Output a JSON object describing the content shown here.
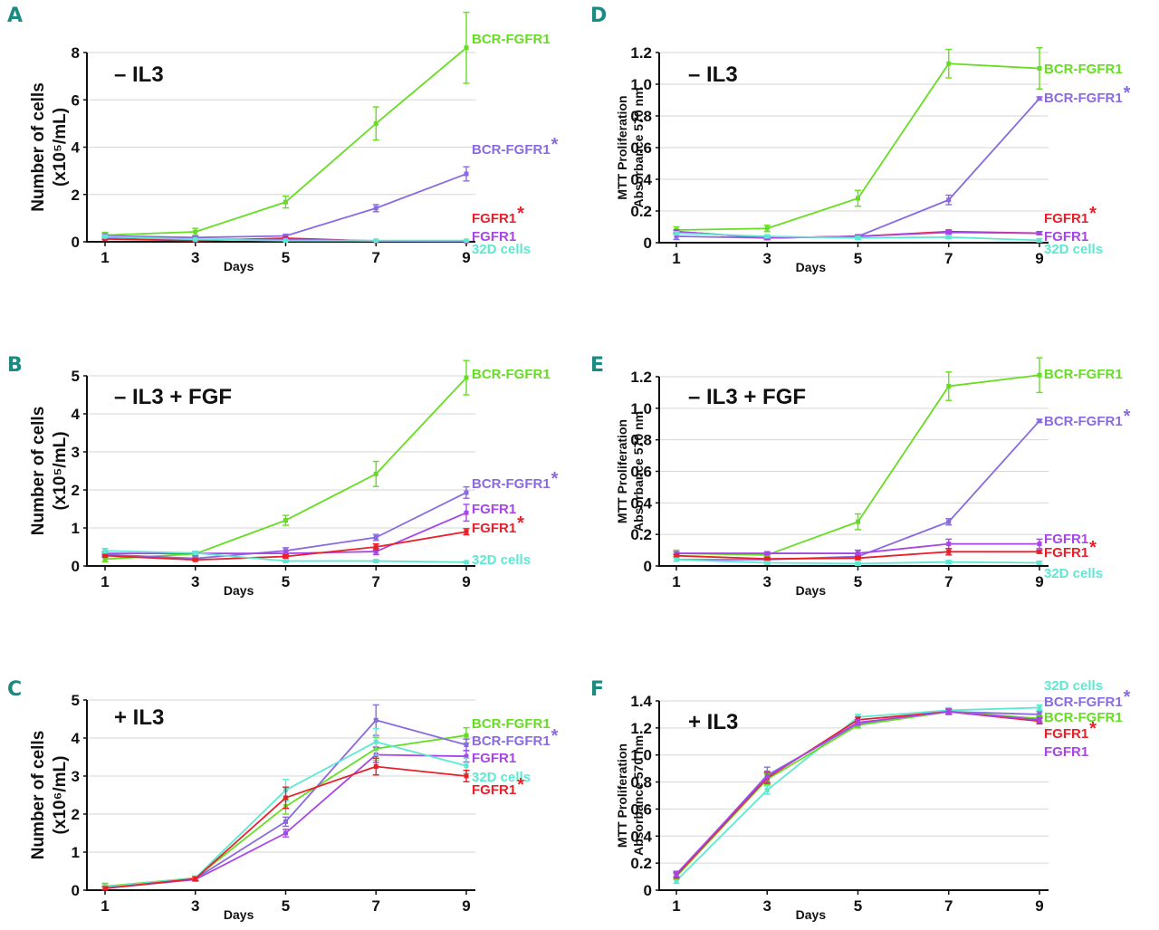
{
  "figure": {
    "colors": {
      "panel_letter": "#1a8a82",
      "BCR-FGFR1": "#66dd22",
      "BCR-FGFR1*": "#8a6ae0",
      "FGFR1*": "#e8202a",
      "FGFR1": "#a845e8",
      "32D cells": "#5ee8d2"
    }
  },
  "chart_data": [
    {
      "id": "A",
      "type": "line",
      "panel_letter": "A",
      "title": "– IL3",
      "xlabel": "Days",
      "ylabel_line1": "Number of cells",
      "ylabel_line2": "(x10⁵/mL)",
      "x": [
        1,
        3,
        5,
        7,
        9
      ],
      "xticks": [
        "1",
        "3",
        "5",
        "7",
        "9"
      ],
      "ylim": [
        0,
        8
      ],
      "yticks": [
        "0",
        "2",
        "4",
        "6",
        "8"
      ],
      "ytick_values": [
        0,
        2,
        4,
        6,
        8
      ],
      "grid": true,
      "series": [
        {
          "name": "BCR-FGFR1",
          "star": false,
          "color_key": "BCR-FGFR1",
          "values": [
            0.28,
            0.42,
            1.68,
            5.0,
            8.2
          ],
          "errors": [
            0.12,
            0.15,
            0.25,
            0.7,
            1.5
          ]
        },
        {
          "name": "BCR-FGFR1",
          "star": true,
          "color_key": "BCR-FGFR1*",
          "values": [
            0.25,
            0.18,
            0.25,
            1.42,
            2.87
          ],
          "errors": [
            0.08,
            0.05,
            0.06,
            0.15,
            0.3
          ]
        },
        {
          "name": "FGFR1",
          "star": true,
          "color_key": "FGFR1*",
          "values": [
            0.12,
            0.05,
            0.15,
            0.03,
            0.02
          ],
          "errors": [
            0.03,
            0.02,
            0.03,
            0.01,
            0.01
          ]
        },
        {
          "name": "FGFR1",
          "star": false,
          "color_key": "FGFR1",
          "values": [
            0.2,
            0.1,
            0.1,
            0.04,
            0.03
          ],
          "errors": [
            0.03,
            0.02,
            0.02,
            0.01,
            0.01
          ]
        },
        {
          "name": "32D cells",
          "star": false,
          "color_key": "32D cells",
          "values": [
            0.22,
            0.1,
            0.05,
            0.05,
            0.05
          ],
          "errors": [
            0.04,
            0.02,
            0.02,
            0.02,
            0.02
          ]
        }
      ],
      "legend_order": [
        0,
        1,
        2,
        3,
        4
      ],
      "legend_placement": "right"
    },
    {
      "id": "B",
      "type": "line",
      "panel_letter": "B",
      "title": "– IL3 + FGF",
      "xlabel": "Days",
      "ylabel_line1": "Number of cells",
      "ylabel_line2": "(x10⁵/mL)",
      "x": [
        1,
        3,
        5,
        7,
        9
      ],
      "xticks": [
        "1",
        "3",
        "5",
        "7",
        "9"
      ],
      "ylim": [
        0,
        5
      ],
      "yticks": [
        "0",
        "1",
        "2",
        "3",
        "4",
        "5"
      ],
      "ytick_values": [
        0,
        1,
        2,
        3,
        4,
        5
      ],
      "grid": true,
      "series": [
        {
          "name": "BCR-FGFR1",
          "star": false,
          "color_key": "BCR-FGFR1",
          "values": [
            0.18,
            0.32,
            1.2,
            2.42,
            4.95
          ],
          "errors": [
            0.07,
            0.05,
            0.13,
            0.33,
            0.45
          ]
        },
        {
          "name": "BCR-FGFR1",
          "star": true,
          "color_key": "BCR-FGFR1*",
          "values": [
            0.3,
            0.2,
            0.4,
            0.75,
            1.93
          ],
          "errors": [
            0.05,
            0.04,
            0.08,
            0.08,
            0.15
          ]
        },
        {
          "name": "FGFR1",
          "star": false,
          "color_key": "FGFR1",
          "values": [
            0.33,
            0.33,
            0.33,
            0.38,
            1.4
          ],
          "errors": [
            0.05,
            0.05,
            0.06,
            0.08,
            0.22
          ]
        },
        {
          "name": "FGFR1",
          "star": true,
          "color_key": "FGFR1*",
          "values": [
            0.27,
            0.16,
            0.25,
            0.5,
            0.9
          ],
          "errors": [
            0.04,
            0.03,
            0.04,
            0.08,
            0.08
          ]
        },
        {
          "name": "32D cells",
          "star": false,
          "color_key": "32D cells",
          "values": [
            0.4,
            0.34,
            0.13,
            0.13,
            0.1
          ],
          "errors": [
            0.06,
            0.04,
            0.03,
            0.03,
            0.02
          ]
        }
      ],
      "legend_order": [
        0,
        1,
        2,
        3,
        4
      ],
      "legend_placement": "right"
    },
    {
      "id": "C",
      "type": "line",
      "panel_letter": "C",
      "title": "+ IL3",
      "xlabel": "Days",
      "ylabel_line1": "Number of cells",
      "ylabel_line2": "(x10⁶/mL)",
      "x": [
        1,
        3,
        5,
        7,
        9
      ],
      "xticks": [
        "1",
        "3",
        "5",
        "7",
        "9"
      ],
      "ylim": [
        0,
        5
      ],
      "yticks": [
        "0",
        "1",
        "2",
        "3",
        "4",
        "5"
      ],
      "ytick_values": [
        0,
        1,
        2,
        3,
        4,
        5
      ],
      "grid": true,
      "series": [
        {
          "name": "BCR-FGFR1",
          "star": false,
          "color_key": "BCR-FGFR1",
          "values": [
            0.1,
            0.32,
            2.2,
            3.72,
            4.07
          ],
          "errors": [
            0.08,
            0.05,
            0.2,
            0.3,
            0.2
          ]
        },
        {
          "name": "BCR-FGFR1",
          "star": true,
          "color_key": "BCR-FGFR1*",
          "values": [
            0.05,
            0.3,
            1.8,
            4.47,
            3.82
          ],
          "errors": [
            0.04,
            0.05,
            0.12,
            0.4,
            0.15
          ]
        },
        {
          "name": "FGFR1",
          "star": false,
          "color_key": "FGFR1",
          "values": [
            0.05,
            0.28,
            1.5,
            3.56,
            3.52
          ],
          "errors": [
            0.04,
            0.04,
            0.1,
            0.2,
            0.15
          ]
        },
        {
          "name": "32D cells",
          "star": false,
          "color_key": "32D cells",
          "values": [
            0.08,
            0.32,
            2.63,
            3.9,
            3.27
          ],
          "errors": [
            0.05,
            0.05,
            0.28,
            0.35,
            0.2
          ]
        },
        {
          "name": "FGFR1",
          "star": true,
          "color_key": "FGFR1*",
          "values": [
            0.05,
            0.3,
            2.43,
            3.25,
            3.0
          ],
          "errors": [
            0.04,
            0.05,
            0.28,
            0.22,
            0.15
          ]
        }
      ],
      "legend_order": [
        0,
        1,
        2,
        3,
        4
      ],
      "legend_placement": "right"
    },
    {
      "id": "D",
      "type": "line",
      "panel_letter": "D",
      "title": "– IL3",
      "xlabel": "Days",
      "ylabel_line1": "MTT Proliferation",
      "ylabel_line2": "Absorbance 570 nm",
      "x": [
        1,
        3,
        5,
        7,
        9
      ],
      "xticks": [
        "1",
        "3",
        "5",
        "7",
        "9"
      ],
      "ylim": [
        0,
        1.2
      ],
      "yticks": [
        "0",
        "0.2",
        "0.4",
        "0.6",
        "0.8",
        "1.0",
        "1.2"
      ],
      "ytick_values": [
        0,
        0.2,
        0.4,
        0.6,
        0.8,
        1.0,
        1.2
      ],
      "grid": true,
      "series": [
        {
          "name": "BCR-FGFR1",
          "star": false,
          "color_key": "BCR-FGFR1",
          "values": [
            0.08,
            0.09,
            0.28,
            1.13,
            1.1
          ],
          "errors": [
            0.02,
            0.02,
            0.05,
            0.09,
            0.13
          ]
        },
        {
          "name": "BCR-FGFR1",
          "star": true,
          "color_key": "BCR-FGFR1*",
          "values": [
            0.04,
            0.03,
            0.04,
            0.27,
            0.91
          ],
          "errors": [
            0.02,
            0.01,
            0.01,
            0.03,
            0.01
          ]
        },
        {
          "name": "FGFR1",
          "star": true,
          "color_key": "FGFR1*",
          "values": [
            0.07,
            0.03,
            0.04,
            0.07,
            0.06
          ],
          "errors": [
            0.01,
            0.01,
            0.01,
            0.01,
            0.01
          ]
        },
        {
          "name": "FGFR1",
          "star": false,
          "color_key": "FGFR1",
          "values": [
            0.07,
            0.03,
            0.04,
            0.065,
            0.06
          ],
          "errors": [
            0.01,
            0.01,
            0.01,
            0.01,
            0.01
          ]
        },
        {
          "name": "32D cells",
          "star": false,
          "color_key": "32D cells",
          "values": [
            0.06,
            0.04,
            0.03,
            0.035,
            0.015
          ],
          "errors": [
            0.01,
            0.01,
            0.01,
            0.01,
            0.01
          ]
        }
      ],
      "legend_order": [
        0,
        1,
        2,
        3,
        4
      ],
      "legend_placement": "right"
    },
    {
      "id": "E",
      "type": "line",
      "panel_letter": "E",
      "title": "– IL3 + FGF",
      "xlabel": "Days",
      "ylabel_line1": "MTT Proliferation",
      "ylabel_line2": "Absorbance 570 nm",
      "x": [
        1,
        3,
        5,
        7,
        9
      ],
      "xticks": [
        "1",
        "3",
        "5",
        "7",
        "9"
      ],
      "ylim": [
        0,
        1.2
      ],
      "yticks": [
        "0",
        "0.2",
        "0.4",
        "0.6",
        "0.8",
        "1.0",
        "1.2"
      ],
      "ytick_values": [
        0,
        0.2,
        0.4,
        0.6,
        0.8,
        1.0,
        1.2
      ],
      "grid": true,
      "series": [
        {
          "name": "BCR-FGFR1",
          "star": false,
          "color_key": "BCR-FGFR1",
          "values": [
            0.08,
            0.07,
            0.28,
            1.14,
            1.21
          ],
          "errors": [
            0.02,
            0.01,
            0.05,
            0.09,
            0.11
          ]
        },
        {
          "name": "BCR-FGFR1",
          "star": true,
          "color_key": "BCR-FGFR1*",
          "values": [
            0.04,
            0.04,
            0.06,
            0.28,
            0.92
          ],
          "errors": [
            0.01,
            0.01,
            0.01,
            0.02,
            0.01
          ]
        },
        {
          "name": "FGFR1",
          "star": false,
          "color_key": "FGFR1",
          "values": [
            0.08,
            0.08,
            0.08,
            0.14,
            0.14
          ],
          "errors": [
            0.01,
            0.01,
            0.02,
            0.03,
            0.03
          ]
        },
        {
          "name": "FGFR1",
          "star": true,
          "color_key": "FGFR1*",
          "values": [
            0.065,
            0.045,
            0.05,
            0.09,
            0.09
          ],
          "errors": [
            0.01,
            0.01,
            0.01,
            0.02,
            0.01
          ]
        },
        {
          "name": "32D cells",
          "star": false,
          "color_key": "32D cells",
          "values": [
            0.04,
            0.02,
            0.015,
            0.025,
            0.02
          ],
          "errors": [
            0.01,
            0.01,
            0.01,
            0.01,
            0.01
          ]
        }
      ],
      "legend_order": [
        0,
        1,
        2,
        3,
        4
      ],
      "legend_placement": "right"
    },
    {
      "id": "F",
      "type": "line",
      "panel_letter": "F",
      "title": "+ IL3",
      "xlabel": "Days",
      "ylabel_line1": "MTT Proliferation",
      "ylabel_line2": "Absorbance 570 nm",
      "x": [
        1,
        3,
        5,
        7,
        9
      ],
      "xticks": [
        "1",
        "3",
        "5",
        "7",
        "9"
      ],
      "ylim": [
        0,
        1.4
      ],
      "yticks": [
        "0",
        "0.2",
        "0.4",
        "0.6",
        "0.8",
        "1.0",
        "1.2",
        "1.4"
      ],
      "ytick_values": [
        0,
        0.2,
        0.4,
        0.6,
        0.8,
        1.0,
        1.2,
        1.4
      ],
      "grid": true,
      "series": [
        {
          "name": "32D cells",
          "star": false,
          "color_key": "32D cells",
          "values": [
            0.07,
            0.74,
            1.28,
            1.33,
            1.35
          ],
          "errors": [
            0.02,
            0.03,
            0.02,
            0.02,
            0.02
          ]
        },
        {
          "name": "BCR-FGFR1",
          "star": true,
          "color_key": "BCR-FGFR1*",
          "values": [
            0.11,
            0.85,
            1.23,
            1.32,
            1.3
          ],
          "errors": [
            0.02,
            0.06,
            0.03,
            0.02,
            0.02
          ]
        },
        {
          "name": "BCR-FGFR1",
          "star": false,
          "color_key": "BCR-FGFR1",
          "values": [
            0.1,
            0.82,
            1.22,
            1.32,
            1.27
          ],
          "errors": [
            0.02,
            0.04,
            0.02,
            0.02,
            0.02
          ]
        },
        {
          "name": "FGFR1",
          "star": true,
          "color_key": "FGFR1*",
          "values": [
            0.11,
            0.83,
            1.26,
            1.32,
            1.25
          ],
          "errors": [
            0.02,
            0.04,
            0.02,
            0.02,
            0.02
          ]
        },
        {
          "name": "FGFR1",
          "star": false,
          "color_key": "FGFR1",
          "values": [
            0.12,
            0.84,
            1.24,
            1.32,
            1.26
          ],
          "errors": [
            0.02,
            0.04,
            0.02,
            0.02,
            0.02
          ]
        }
      ],
      "legend_order": [
        0,
        1,
        2,
        3,
        4
      ],
      "legend_placement": "top-right"
    }
  ]
}
